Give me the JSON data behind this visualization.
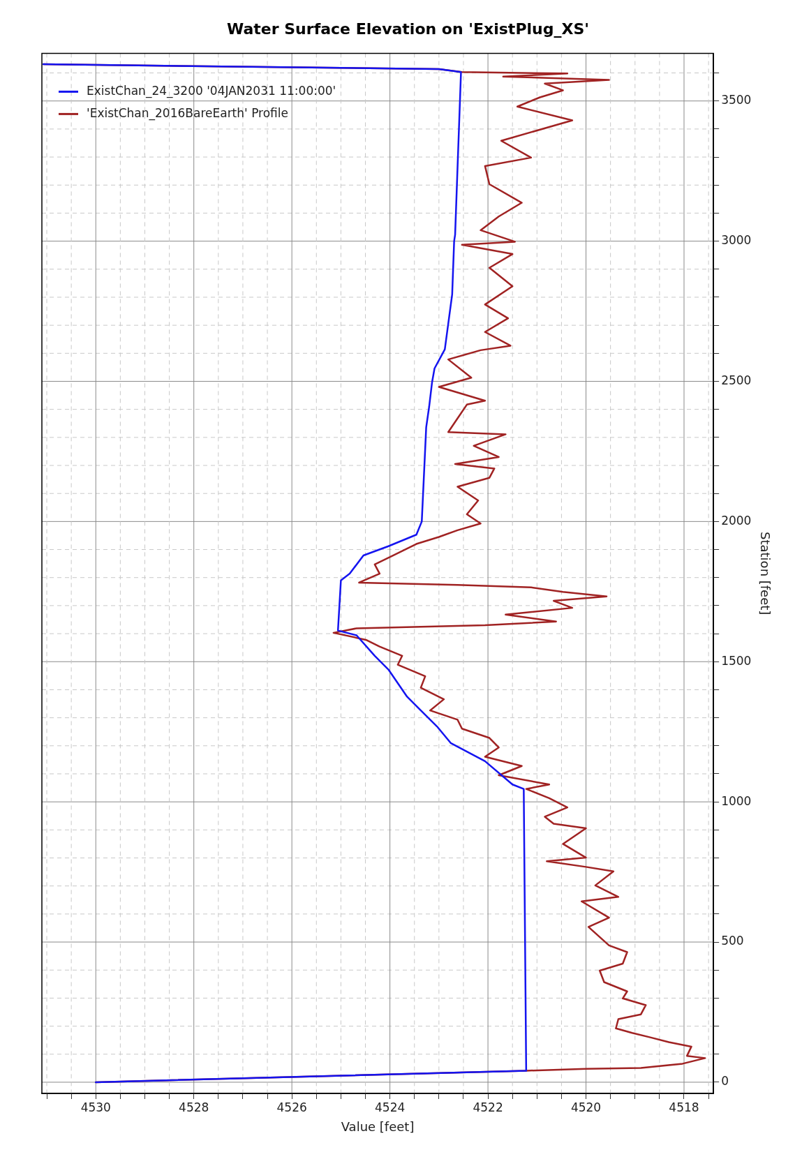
{
  "chart_data": {
    "type": "line",
    "title": "Water Surface Elevation on 'ExistPlug_XS'",
    "xlabel": "Value [feet]",
    "ylabel": "Station [feet]",
    "xlim": [
      4531.1,
      4517.4
    ],
    "ylim": [
      -40,
      3670
    ],
    "yticks": [
      0,
      {
        "value": 100,
        "label": null
      },
      {
        "value": 200,
        "label": null
      },
      {
        "value": 300,
        "label": null
      },
      {
        "value": 400,
        "label": null
      },
      500,
      {
        "value": 600,
        "label": null
      },
      {
        "value": 700,
        "label": null
      },
      {
        "value": 800,
        "label": null
      },
      {
        "value": 900,
        "label": null
      },
      1000,
      {
        "value": 1100,
        "label": null
      },
      {
        "value": 1200,
        "label": null
      },
      {
        "value": 1300,
        "label": null
      },
      {
        "value": 1400,
        "label": null
      },
      1500,
      {
        "value": 1600,
        "label": null
      },
      {
        "value": 1700,
        "label": null
      },
      {
        "value": 1800,
        "label": null
      },
      {
        "value": 1900,
        "label": null
      },
      2000,
      {
        "value": 2100,
        "label": null
      },
      {
        "value": 2200,
        "label": null
      },
      {
        "value": 2300,
        "label": null
      },
      {
        "value": 2400,
        "label": null
      },
      2500,
      {
        "value": 2600,
        "label": null
      },
      {
        "value": 2700,
        "label": null
      },
      {
        "value": 2800,
        "label": null
      },
      {
        "value": 2900,
        "label": null
      },
      3000,
      {
        "value": 3100,
        "label": null
      },
      {
        "value": 3200,
        "label": null
      },
      {
        "value": 3300,
        "label": null
      },
      {
        "value": 3400,
        "label": null
      },
      3500,
      {
        "value": 3600,
        "label": null
      }
    ],
    "xticks": [
      {
        "value": 4531,
        "label": null
      },
      {
        "value": 4530.5,
        "label": null
      },
      4530,
      {
        "value": 4529.5,
        "label": null
      },
      {
        "value": 4529,
        "label": null
      },
      {
        "value": 4528.5,
        "label": null
      },
      4528,
      {
        "value": 4527.5,
        "label": null
      },
      {
        "value": 4527,
        "label": null
      },
      {
        "value": 4526.5,
        "label": null
      },
      4526,
      {
        "value": 4525.5,
        "label": null
      },
      {
        "value": 4525,
        "label": null
      },
      {
        "value": 4524.5,
        "label": null
      },
      4524,
      {
        "value": 4523.5,
        "label": null
      },
      {
        "value": 4523,
        "label": null
      },
      {
        "value": 4522.5,
        "label": null
      },
      4522,
      {
        "value": 4521.5,
        "label": null
      },
      {
        "value": 4521,
        "label": null
      },
      {
        "value": 4520.5,
        "label": null
      },
      4520,
      {
        "value": 4519.5,
        "label": null
      },
      {
        "value": 4519,
        "label": null
      },
      {
        "value": 4518.5,
        "label": null
      },
      4518,
      {
        "value": 4517.5,
        "label": null
      }
    ],
    "grid": true,
    "legend": "top left",
    "marker": "none",
    "line_style": "solid",
    "series": [
      {
        "name": "ExistChan_24_3200 '04JAN2031 11:00:00'",
        "color": "#1414f0",
        "values": [
          0,
          41,
          1046,
          1062,
          1145,
          1210,
          1269,
          1293,
          1375,
          1472,
          1521,
          1594,
          1611,
          1790,
          1814,
          1879,
          1912,
          1953,
          2000,
          2336,
          2409,
          2497,
          2546,
          2614,
          2810,
          3000,
          3023,
          3603,
          3614,
          3631
        ],
        "x": [
          4530,
          4521.22,
          4521.27,
          4521.5,
          4522.06,
          4522.76,
          4523.04,
          4523.18,
          4523.65,
          4524.03,
          4524.31,
          4524.68,
          4525.06,
          4525.0,
          4524.82,
          4524.54,
          4524.03,
          4523.46,
          4523.35,
          4523.26,
          4523.2,
          4523.14,
          4523.09,
          4522.88,
          4522.73,
          4522.69,
          4522.67,
          4522.55,
          4523.0,
          4531.07
        ]
      },
      {
        "name": "'ExistChan_2016BareEarth' Profile",
        "color": "#a02222",
        "values": [
          0,
          41,
          48,
          51,
          66,
          86,
          94,
          127,
          143,
          160,
          176,
          192,
          225,
          242,
          275,
          299,
          324,
          357,
          398,
          423,
          464,
          488,
          554,
          587,
          645,
          661,
          702,
          752,
          768,
          788,
          801,
          850,
          906,
          922,
          947,
          980,
          1013,
          1046,
          1062,
          1095,
          1128,
          1161,
          1194,
          1228,
          1261,
          1293,
          1326,
          1366,
          1407,
          1448,
          1489,
          1521,
          1554,
          1578,
          1603,
          1619,
          1630,
          1643,
          1668,
          1692,
          1717,
          1733,
          1749,
          1765,
          1774,
          1782,
          1814,
          1847,
          1879,
          1920,
          1945,
          1969,
          1993,
          2026,
          2075,
          2124,
          2156,
          2189,
          2205,
          2230,
          2270,
          2311,
          2319,
          2368,
          2417,
          2431,
          2480,
          2513,
          2578,
          2611,
          2627,
          2676,
          2725,
          2774,
          2839,
          2905,
          2954,
          2987,
          2998,
          3039,
          3088,
          3137,
          3203,
          3268,
          3298,
          3358,
          3431,
          3480,
          3513,
          3538,
          3562,
          3575,
          3587,
          3598,
          3603,
          3614,
          3631
        ],
        "x": [
          4530,
          4521.22,
          4520.0,
          4518.88,
          4518.03,
          4517.57,
          4517.94,
          4517.85,
          4518.31,
          4518.69,
          4519.06,
          4519.39,
          4519.34,
          4518.88,
          4518.78,
          4519.25,
          4519.16,
          4519.63,
          4519.72,
          4519.25,
          4519.16,
          4519.53,
          4519.95,
          4519.53,
          4520.09,
          4519.34,
          4519.81,
          4519.44,
          4520.0,
          4520.8,
          4520.0,
          4520.47,
          4520.0,
          4520.66,
          4520.84,
          4520.38,
          4520.75,
          4521.22,
          4520.75,
          4521.78,
          4521.31,
          4522.06,
          4521.78,
          4521.97,
          4522.53,
          4522.62,
          4523.18,
          4522.9,
          4523.37,
          4523.28,
          4523.84,
          4523.75,
          4524.21,
          4524.49,
          4525.15,
          4524.68,
          4522.06,
          4520.61,
          4521.64,
          4520.28,
          4520.66,
          4519.58,
          4520.47,
          4521.12,
          4522.62,
          4524.63,
          4524.21,
          4524.31,
          4523.93,
          4523.46,
          4523.0,
          4522.62,
          4522.15,
          4522.43,
          4522.2,
          4522.62,
          4521.97,
          4521.87,
          4522.67,
          4521.78,
          4522.29,
          4521.64,
          4522.81,
          4522.62,
          4522.43,
          4522.06,
          4523.0,
          4522.34,
          4522.81,
          4522.15,
          4521.54,
          4522.06,
          4521.59,
          4522.06,
          4521.5,
          4521.97,
          4521.5,
          4522.53,
          4521.45,
          4522.15,
          4521.78,
          4521.31,
          4521.97,
          4522.06,
          4521.12,
          4521.73,
          4520.28,
          4521.4,
          4520.94,
          4520.47,
          4520.84,
          4519.53,
          4521.69,
          4520.38,
          4522.53,
          4523.0,
          4531.07
        ]
      }
    ]
  }
}
